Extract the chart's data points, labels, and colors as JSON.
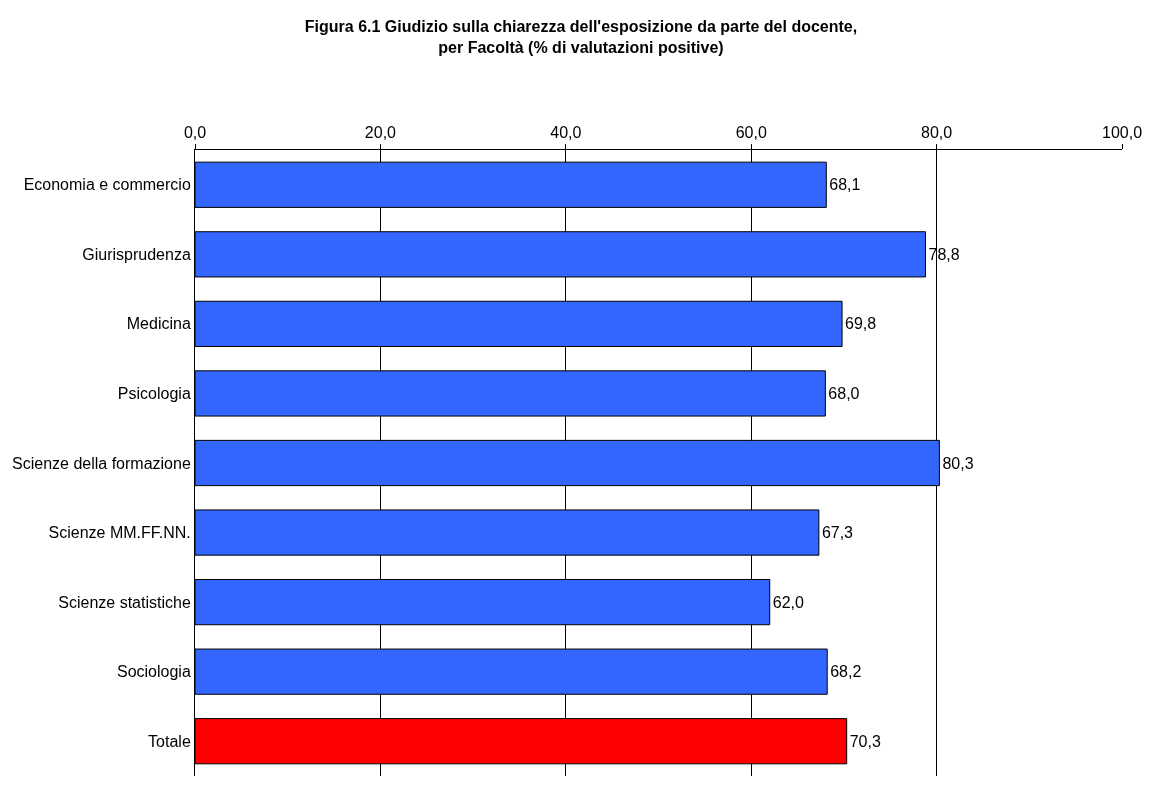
{
  "chart_data": {
    "type": "bar",
    "orientation": "horizontal",
    "title": "Figura 6.1 Giudizio sulla chiarezza dell'esposizione da parte del docente,\nper Facoltà (% di valutazioni positive)",
    "categories": [
      "Economia e commercio",
      "Giurisprudenza",
      "Medicina",
      "Psicologia",
      "Scienze della formazione",
      "Scienze MM.FF.NN.",
      "Scienze statistiche",
      "Sociologia",
      "Totale"
    ],
    "values": [
      68.1,
      78.8,
      69.8,
      68.0,
      80.3,
      67.3,
      62.0,
      68.2,
      70.3
    ],
    "value_labels": [
      "68,1",
      "78,8",
      "69,8",
      "68,0",
      "80,3",
      "67,3",
      "62,0",
      "68,2",
      "70,3"
    ],
    "colors": [
      "#3366ff",
      "#3366ff",
      "#3366ff",
      "#3366ff",
      "#3366ff",
      "#3366ff",
      "#3366ff",
      "#3366ff",
      "#ff0000"
    ],
    "xlim": [
      0,
      100
    ],
    "xticks": [
      {
        "value": 0,
        "label": "0,0"
      },
      {
        "value": 20,
        "label": "20,0"
      },
      {
        "value": 40,
        "label": "40,0"
      },
      {
        "value": 60,
        "label": "60,0"
      },
      {
        "value": 80,
        "label": "80,0"
      },
      {
        "value": 100,
        "label": "100,0"
      }
    ],
    "grid": "x",
    "legend": false
  }
}
